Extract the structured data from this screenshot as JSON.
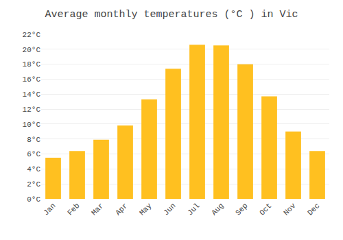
{
  "chart_data": {
    "type": "bar",
    "title": "Average monthly temperatures (°C ) in Vic",
    "categories": [
      "Jan",
      "Feb",
      "Mar",
      "Apr",
      "May",
      "Jun",
      "Jul",
      "Aug",
      "Sep",
      "Oct",
      "Nov",
      "Dec"
    ],
    "values": [
      5.5,
      6.4,
      7.9,
      9.8,
      13.3,
      17.4,
      20.6,
      20.5,
      18.0,
      13.7,
      9.0,
      6.4
    ],
    "color": "#FFC020",
    "ylim": [
      0,
      22
    ],
    "yticks": [
      {
        "value": 0,
        "label": "0°C"
      },
      {
        "value": 2,
        "label": "2°C"
      },
      {
        "value": 4,
        "label": "4°C"
      },
      {
        "value": 6,
        "label": "6°C"
      },
      {
        "value": 8,
        "label": "8°C"
      },
      {
        "value": 10,
        "label": "10°C"
      },
      {
        "value": 12,
        "label": "12°C"
      },
      {
        "value": 14,
        "label": "14°C"
      },
      {
        "value": 16,
        "label": "16°C"
      },
      {
        "value": 18,
        "label": "18°C"
      },
      {
        "value": 20,
        "label": "20°C"
      },
      {
        "value": 22,
        "label": "22°C"
      }
    ],
    "grid": true
  }
}
